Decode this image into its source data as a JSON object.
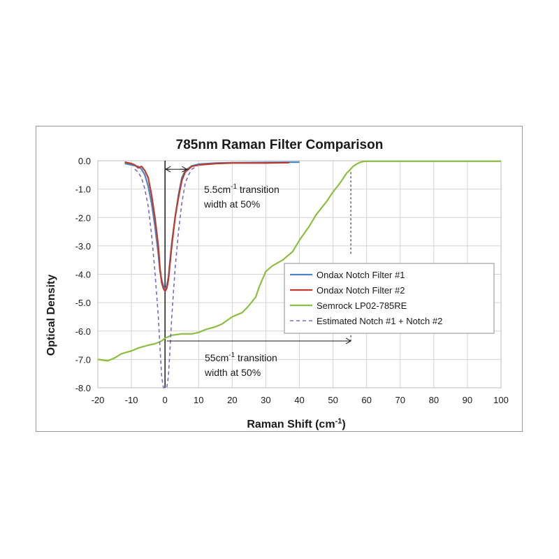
{
  "chart_data": {
    "type": "line",
    "title": "785nm Raman Filter Comparison",
    "xlabel": "Raman Shift (cm",
    "xlabel_sup": "-1",
    "xlabel_end": ")",
    "ylabel": "Optical Density",
    "xlim": [
      -20,
      100
    ],
    "ylim": [
      -8,
      0
    ],
    "x_ticks": [
      "-20",
      "-10",
      "0",
      "10",
      "20",
      "30",
      "40",
      "50",
      "60",
      "70",
      "80",
      "90",
      "100"
    ],
    "y_ticks": [
      "0.0",
      "-1.0",
      "-2.0",
      "-3.0",
      "-4.0",
      "-5.0",
      "-6.0",
      "-7.0",
      "-8.0"
    ],
    "grid": true,
    "legend_position": "center-right",
    "series": [
      {
        "name": "Ondax Notch Filter #1",
        "color": "#4a86c8",
        "dash": "none",
        "x": [
          -12,
          -10,
          -8,
          -7,
          -6,
          -5,
          -4,
          -3,
          -2,
          -1.5,
          -1,
          -0.5,
          0,
          0.5,
          1,
          1.5,
          2,
          3,
          4,
          5,
          6,
          8,
          10,
          15,
          20,
          30,
          40
        ],
        "y": [
          -0.1,
          -0.15,
          -0.2,
          -0.3,
          -0.5,
          -0.9,
          -1.5,
          -2.3,
          -3.3,
          -3.9,
          -4.2,
          -4.4,
          -4.55,
          -4.4,
          -4.1,
          -3.5,
          -2.9,
          -2.0,
          -1.2,
          -0.6,
          -0.35,
          -0.18,
          -0.12,
          -0.08,
          -0.07,
          -0.06,
          -0.05
        ]
      },
      {
        "name": "Ondax Notch Filter #2",
        "color": "#c0392b",
        "dash": "none",
        "x": [
          -12,
          -10,
          -9,
          -8,
          -7,
          -6,
          -5,
          -4,
          -3,
          -2,
          -1.5,
          -1,
          -0.5,
          0,
          0.5,
          1,
          1.5,
          2,
          3,
          4,
          5,
          6,
          8,
          10,
          15,
          20,
          30,
          37
        ],
        "y": [
          -0.05,
          -0.1,
          -0.15,
          -0.25,
          -0.2,
          -0.35,
          -0.6,
          -1.2,
          -2.0,
          -3.0,
          -3.8,
          -4.3,
          -4.5,
          -4.6,
          -4.5,
          -4.2,
          -3.6,
          -3.0,
          -2.0,
          -1.3,
          -0.7,
          -0.4,
          -0.2,
          -0.15,
          -0.1,
          -0.08,
          -0.08,
          -0.07
        ]
      },
      {
        "name": "Semrock LP02-785RE",
        "color": "#8cbf3f",
        "dash": "none",
        "x": [
          -20,
          -17,
          -15,
          -13,
          -10,
          -8,
          -5,
          -3,
          -1,
          0,
          2,
          5,
          8,
          10,
          12,
          15,
          17,
          20,
          23,
          25,
          27,
          28,
          30,
          32,
          35,
          38,
          40,
          43,
          45,
          48,
          50,
          52,
          54,
          56,
          57,
          58,
          59,
          60,
          62,
          65,
          70,
          80,
          90,
          100
        ],
        "y": [
          -7.0,
          -7.05,
          -6.95,
          -6.8,
          -6.7,
          -6.6,
          -6.5,
          -6.45,
          -6.35,
          -6.25,
          -6.15,
          -6.1,
          -6.1,
          -6.05,
          -5.95,
          -5.85,
          -5.75,
          -5.5,
          -5.35,
          -5.1,
          -4.8,
          -4.45,
          -3.9,
          -3.7,
          -3.5,
          -3.2,
          -2.8,
          -2.3,
          -1.9,
          -1.45,
          -1.1,
          -0.8,
          -0.45,
          -0.2,
          -0.12,
          -0.06,
          -0.03,
          -0.02,
          -0.02,
          -0.02,
          -0.02,
          -0.02,
          -0.02,
          -0.02
        ]
      },
      {
        "name": "Estimated Notch #1 + Notch #2",
        "color": "#7b68c8",
        "dash": "5,4",
        "x": [
          -9,
          -8,
          -7,
          -6,
          -5,
          -4,
          -3,
          -2,
          -1.5,
          -1,
          -0.5,
          0,
          0.5,
          1,
          1.5,
          2,
          3,
          4,
          5,
          6,
          7,
          8,
          10
        ],
        "y": [
          -0.3,
          -0.4,
          -0.6,
          -1.0,
          -1.6,
          -2.6,
          -3.9,
          -5.5,
          -6.6,
          -7.6,
          -8.0,
          -8.0,
          -8.0,
          -7.6,
          -6.6,
          -5.5,
          -3.8,
          -2.5,
          -1.5,
          -0.8,
          -0.5,
          -0.3,
          -0.15
        ]
      }
    ],
    "annotations": [
      {
        "lines": [
          "5.5cm-1 transition",
          "width at 50%"
        ],
        "line1_parts": [
          "5.5cm",
          "-1",
          " transition"
        ],
        "line2": "width at 50%"
      },
      {
        "lines": [
          "55cm-1 transition",
          "width at 50%"
        ],
        "line1_parts": [
          "55cm",
          "-1",
          " transition"
        ],
        "line2": "width at 50%"
      }
    ]
  }
}
